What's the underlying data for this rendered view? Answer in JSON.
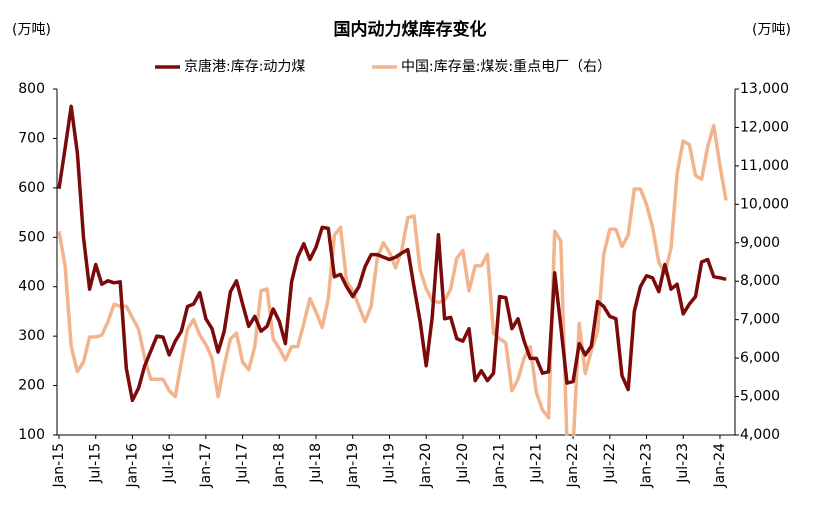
{
  "chart_data": {
    "type": "line",
    "title": "国内动力煤库存变化",
    "y_unit": "(万吨)",
    "y2_unit": "(万吨)",
    "categories": [
      "Jan-15",
      null,
      null,
      null,
      null,
      null,
      "Jul-15",
      null,
      null,
      null,
      null,
      null,
      "Jan-16",
      null,
      null,
      null,
      null,
      null,
      "Jul-16",
      null,
      null,
      null,
      null,
      null,
      "Jan-17",
      null,
      null,
      null,
      null,
      null,
      "Jul-17",
      null,
      null,
      null,
      null,
      null,
      "Jan-18",
      null,
      null,
      null,
      null,
      null,
      "Jul-18",
      null,
      null,
      null,
      null,
      null,
      "Jan-19",
      null,
      null,
      null,
      null,
      null,
      "Jul-19",
      null,
      null,
      null,
      null,
      null,
      "Jan-20",
      null,
      null,
      null,
      null,
      null,
      "Jul-20",
      null,
      null,
      null,
      null,
      null,
      "Jan-21",
      null,
      null,
      null,
      null,
      null,
      "Jul-21",
      null,
      null,
      null,
      null,
      null,
      "Jan-22",
      null,
      null,
      null,
      null,
      null,
      "Jul-22",
      null,
      null,
      null,
      null,
      null,
      "Jan-23",
      null,
      null,
      null,
      null,
      null,
      "Jul-23",
      null,
      null,
      null,
      null,
      null,
      "Jan-24",
      null
    ],
    "series": [
      {
        "name": "京唐港:库存:动力煤",
        "color": "#7b0a0a",
        "axis": "y",
        "values": [
          598,
          680,
          765,
          670,
          500,
          395,
          445,
          405,
          412,
          408,
          410,
          235,
          170,
          195,
          240,
          270,
          300,
          298,
          262,
          290,
          310,
          360,
          365,
          388,
          335,
          315,
          268,
          310,
          390,
          412,
          365,
          320,
          340,
          310,
          320,
          355,
          330,
          285,
          410,
          460,
          487,
          455,
          480,
          520,
          518,
          420,
          425,
          400,
          380,
          400,
          440,
          465,
          465,
          460,
          455,
          460,
          468,
          475,
          400,
          330,
          240,
          340,
          505,
          335,
          338,
          295,
          290,
          315,
          210,
          230,
          210,
          225,
          380,
          378,
          315,
          335,
          290,
          255,
          255,
          225,
          228,
          428,
          320,
          205,
          208,
          285,
          262,
          280,
          370,
          360,
          340,
          335,
          220,
          192,
          350,
          400,
          422,
          418,
          390,
          445,
          395,
          405,
          345,
          365,
          380,
          450,
          455,
          420,
          418,
          415
        ]
      },
      {
        "name": "中国:库存量:煤炭:重点电厂（右）",
        "color": "#f2b48c",
        "axis": "y2",
        "values": [
          9300,
          8400,
          6300,
          5650,
          5900,
          6550,
          6550,
          6600,
          6950,
          7400,
          7350,
          7350,
          7050,
          6750,
          6000,
          5450,
          5450,
          5450,
          5150,
          5000,
          5900,
          6750,
          7000,
          6600,
          6350,
          6000,
          5000,
          5800,
          6500,
          6650,
          5900,
          5700,
          6300,
          7750,
          7800,
          6500,
          6250,
          5950,
          6300,
          6300,
          6900,
          7550,
          7200,
          6800,
          7550,
          9200,
          9400,
          8000,
          7750,
          7350,
          6950,
          7350,
          8600,
          9000,
          8750,
          8350,
          8800,
          9650,
          9700,
          8300,
          7800,
          7500,
          7450,
          7500,
          7800,
          8600,
          8800,
          7750,
          8400,
          8400,
          8700,
          6650,
          6500,
          6400,
          5150,
          5450,
          6000,
          6300,
          5100,
          4650,
          4450,
          9300,
          9050,
          3800,
          3700,
          6900,
          5600,
          6200,
          6700,
          8700,
          9350,
          9350,
          8900,
          9200,
          10400,
          10400,
          10000,
          9400,
          8500,
          8200,
          8850,
          10800,
          11650,
          11550,
          10750,
          10650,
          11500,
          12050,
          11000,
          10100
        ]
      }
    ],
    "ylim": [
      100,
      800
    ],
    "yticks": [
      100,
      200,
      300,
      400,
      500,
      600,
      700,
      800
    ],
    "y2lim": [
      4000,
      13000
    ],
    "y2ticks": [
      {
        "value": 4000,
        "label": "4,000"
      },
      {
        "value": 5000,
        "label": "5,000"
      },
      {
        "value": 6000,
        "label": "6,000"
      },
      {
        "value": 7000,
        "label": "7,000"
      },
      {
        "value": 8000,
        "label": "8,000"
      },
      {
        "value": 9000,
        "label": "9,000"
      },
      {
        "value": 10000,
        "label": "10,000"
      },
      {
        "value": 11000,
        "label": "11,000"
      },
      {
        "value": 12000,
        "label": "12,000"
      },
      {
        "value": 13000,
        "label": "13,000"
      }
    ],
    "legend": "top"
  }
}
